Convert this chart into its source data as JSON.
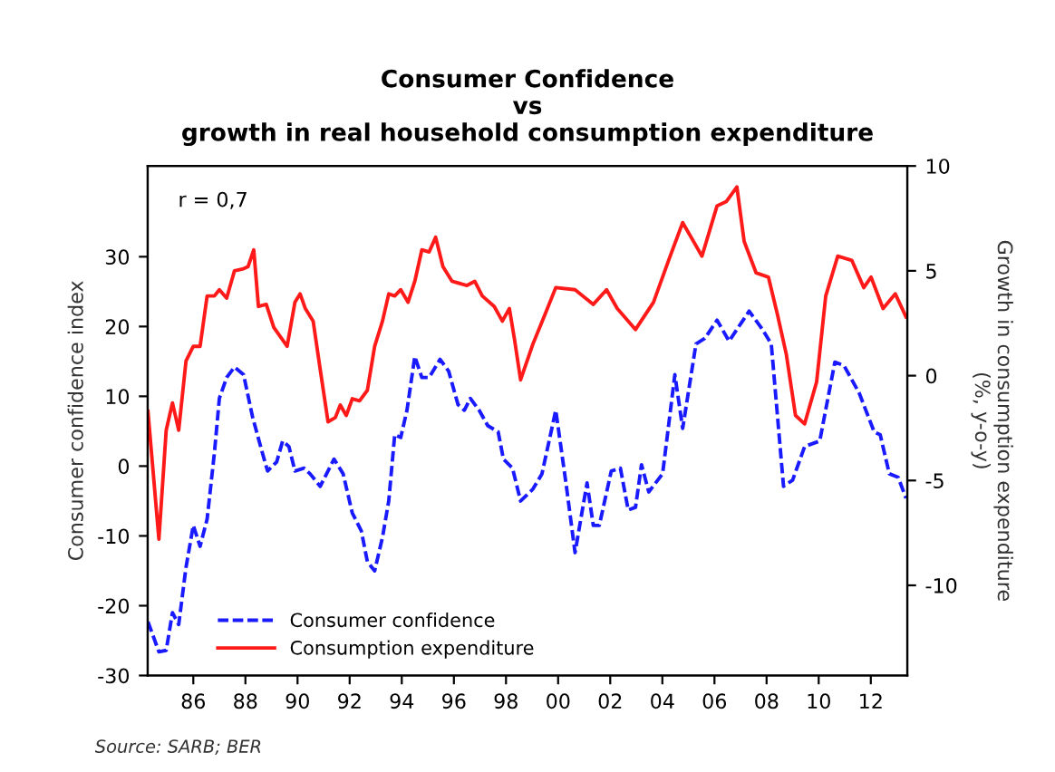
{
  "chart_data": {
    "type": "line",
    "title": "Consumer Confidence\nvs\ngrowth in real household consumption expenditure",
    "ylabel": "Consumer confidence index",
    "y2label": "Growth in consumption expenditure\n(%, y-o-y)",
    "annotations": [
      "r = 0,7",
      "Source: SARB; BER"
    ],
    "xlim": [
      1984.25,
      2013.4
    ],
    "xticks": [
      {
        "value": 1986,
        "label": "86"
      },
      {
        "value": 1988,
        "label": "88"
      },
      {
        "value": 1990,
        "label": "90"
      },
      {
        "value": 1992,
        "label": "92"
      },
      {
        "value": 1994,
        "label": "94"
      },
      {
        "value": 1996,
        "label": "96"
      },
      {
        "value": 1998,
        "label": "98"
      },
      {
        "value": 2000,
        "label": "00"
      },
      {
        "value": 2002,
        "label": "02"
      },
      {
        "value": 2004,
        "label": "04"
      },
      {
        "value": 2006,
        "label": "06"
      },
      {
        "value": 2008,
        "label": "08"
      },
      {
        "value": 2010,
        "label": "10"
      },
      {
        "value": 2012,
        "label": "12"
      }
    ],
    "ylim": [
      -30,
      43
    ],
    "yticks": [
      -30,
      -20,
      -10,
      0,
      10,
      20,
      30
    ],
    "y2lim": [
      -14.3,
      10
    ],
    "y2ticks": [
      -10,
      -5,
      0,
      5,
      10
    ],
    "grid": false,
    "legend": "bottom left",
    "marker": "none",
    "series": [
      {
        "name": "Consumer confidence",
        "color": "#1a1aff",
        "line_style": "dashed",
        "x": [
          1984.26,
          1984.68,
          1984.96,
          1985.2,
          1985.44,
          1985.72,
          1986.0,
          1986.26,
          1986.53,
          1986.81,
          1987.0,
          1987.28,
          1987.58,
          1987.93,
          1988.27,
          1988.62,
          1988.85,
          1989.2,
          1989.43,
          1989.67,
          1989.9,
          1990.25,
          1990.48,
          1990.87,
          1991.4,
          1991.75,
          1992.1,
          1992.45,
          1992.68,
          1992.96,
          1993.26,
          1993.5,
          1993.73,
          1993.96,
          1994.2,
          1994.5,
          1994.77,
          1995.05,
          1995.47,
          1995.8,
          1996.16,
          1996.4,
          1996.63,
          1996.97,
          1997.3,
          1997.7,
          1997.9,
          1998.25,
          1998.56,
          1999.03,
          1999.38,
          1999.91,
          2000.3,
          2000.65,
          2001.11,
          2001.35,
          2001.58,
          2002.04,
          2002.39,
          2002.69,
          2002.97,
          2003.2,
          2003.48,
          2004.01,
          2004.48,
          2004.78,
          2005.29,
          2005.63,
          2006.1,
          2006.56,
          2007.33,
          2007.84,
          2008.18,
          2008.65,
          2009.0,
          2009.46,
          2010.04,
          2010.62,
          2010.97,
          2011.55,
          2012.13,
          2012.36,
          2012.71,
          2013.05,
          2013.35
        ],
        "values": [
          -22.3,
          -26.6,
          -26.4,
          -21,
          -22.7,
          -14.5,
          -8.5,
          -11.5,
          -7.6,
          1.9,
          9.7,
          12.7,
          14.2,
          13.1,
          7.1,
          2.3,
          -0.7,
          0.6,
          3.6,
          2.8,
          -0.7,
          -0.3,
          -1.1,
          -2.9,
          1.0,
          -1.1,
          -6.7,
          -9.3,
          -13.7,
          -15.0,
          -10.2,
          -5.0,
          4.5,
          4.1,
          8.0,
          15.7,
          12.7,
          12.7,
          15.3,
          13.6,
          8.8,
          8.0,
          9.7,
          8.0,
          5.8,
          4.9,
          1.0,
          -0.3,
          -5.0,
          -3.3,
          -1.1,
          8.0,
          -2.4,
          -12.4,
          -2.4,
          -8.5,
          -8.5,
          -0.7,
          -0.3,
          -6.3,
          -5.9,
          0.2,
          -3.7,
          -1.1,
          13.1,
          5.4,
          17.5,
          18.3,
          20.9,
          17.9,
          22.2,
          19.6,
          17.5,
          -2.9,
          -2.0,
          2.8,
          3.6,
          14.9,
          14.4,
          10.5,
          4.9,
          4.5,
          -1.1,
          -1.6,
          -4.6
        ]
      },
      {
        "name": "Consumption expenditure",
        "color": "#ff1a1a",
        "line_style": "solid",
        "axis": "y2",
        "x": [
          1984.26,
          1984.68,
          1984.96,
          1985.2,
          1985.44,
          1985.72,
          1986.0,
          1986.26,
          1986.53,
          1986.81,
          1987.0,
          1987.28,
          1987.58,
          1987.93,
          1988.1,
          1988.32,
          1988.5,
          1988.8,
          1989.09,
          1989.6,
          1989.9,
          1990.1,
          1990.3,
          1990.6,
          1990.87,
          1991.17,
          1991.45,
          1991.64,
          1991.87,
          1992.1,
          1992.38,
          1992.68,
          1992.96,
          1993.26,
          1993.5,
          1993.73,
          1993.96,
          1994.24,
          1994.5,
          1994.77,
          1995.05,
          1995.3,
          1995.58,
          1995.93,
          1996.5,
          1996.8,
          1997.09,
          1997.55,
          1997.86,
          1998.13,
          1998.33,
          1998.56,
          1999.03,
          1999.49,
          1999.91,
          2000.65,
          2001.35,
          2001.86,
          2002.27,
          2002.97,
          2003.66,
          2004.24,
          2004.78,
          2005.52,
          2006.1,
          2006.45,
          2006.86,
          2007.14,
          2007.6,
          2008.07,
          2008.42,
          2008.76,
          2009.11,
          2009.46,
          2009.92,
          2010.27,
          2010.73,
          2011.27,
          2011.73,
          2012.01,
          2012.47,
          2012.94,
          2013.35
        ],
        "values": [
          -1.7,
          -7.8,
          -2.6,
          -1.3,
          -2.6,
          0.7,
          1.4,
          1.4,
          3.8,
          3.8,
          4.1,
          3.7,
          5.0,
          5.1,
          5.2,
          6.0,
          3.3,
          3.4,
          2.3,
          1.4,
          3.5,
          3.9,
          3.2,
          2.6,
          0.3,
          -2.2,
          -2.0,
          -1.4,
          -1.9,
          -1.1,
          -1.2,
          -0.7,
          1.4,
          2.6,
          3.9,
          3.8,
          4.1,
          3.5,
          4.5,
          6.0,
          5.9,
          6.6,
          5.2,
          4.5,
          4.3,
          4.5,
          3.8,
          3.3,
          2.6,
          3.2,
          1.7,
          -0.2,
          1.5,
          2.9,
          4.2,
          4.1,
          3.4,
          4.1,
          3.2,
          2.2,
          3.5,
          5.5,
          7.3,
          5.7,
          8.1,
          8.3,
          9.0,
          6.4,
          4.9,
          4.7,
          2.9,
          1.0,
          -1.9,
          -2.3,
          -0.3,
          3.8,
          5.7,
          5.5,
          4.2,
          4.7,
          3.2,
          3.9,
          2.8
        ]
      }
    ]
  }
}
